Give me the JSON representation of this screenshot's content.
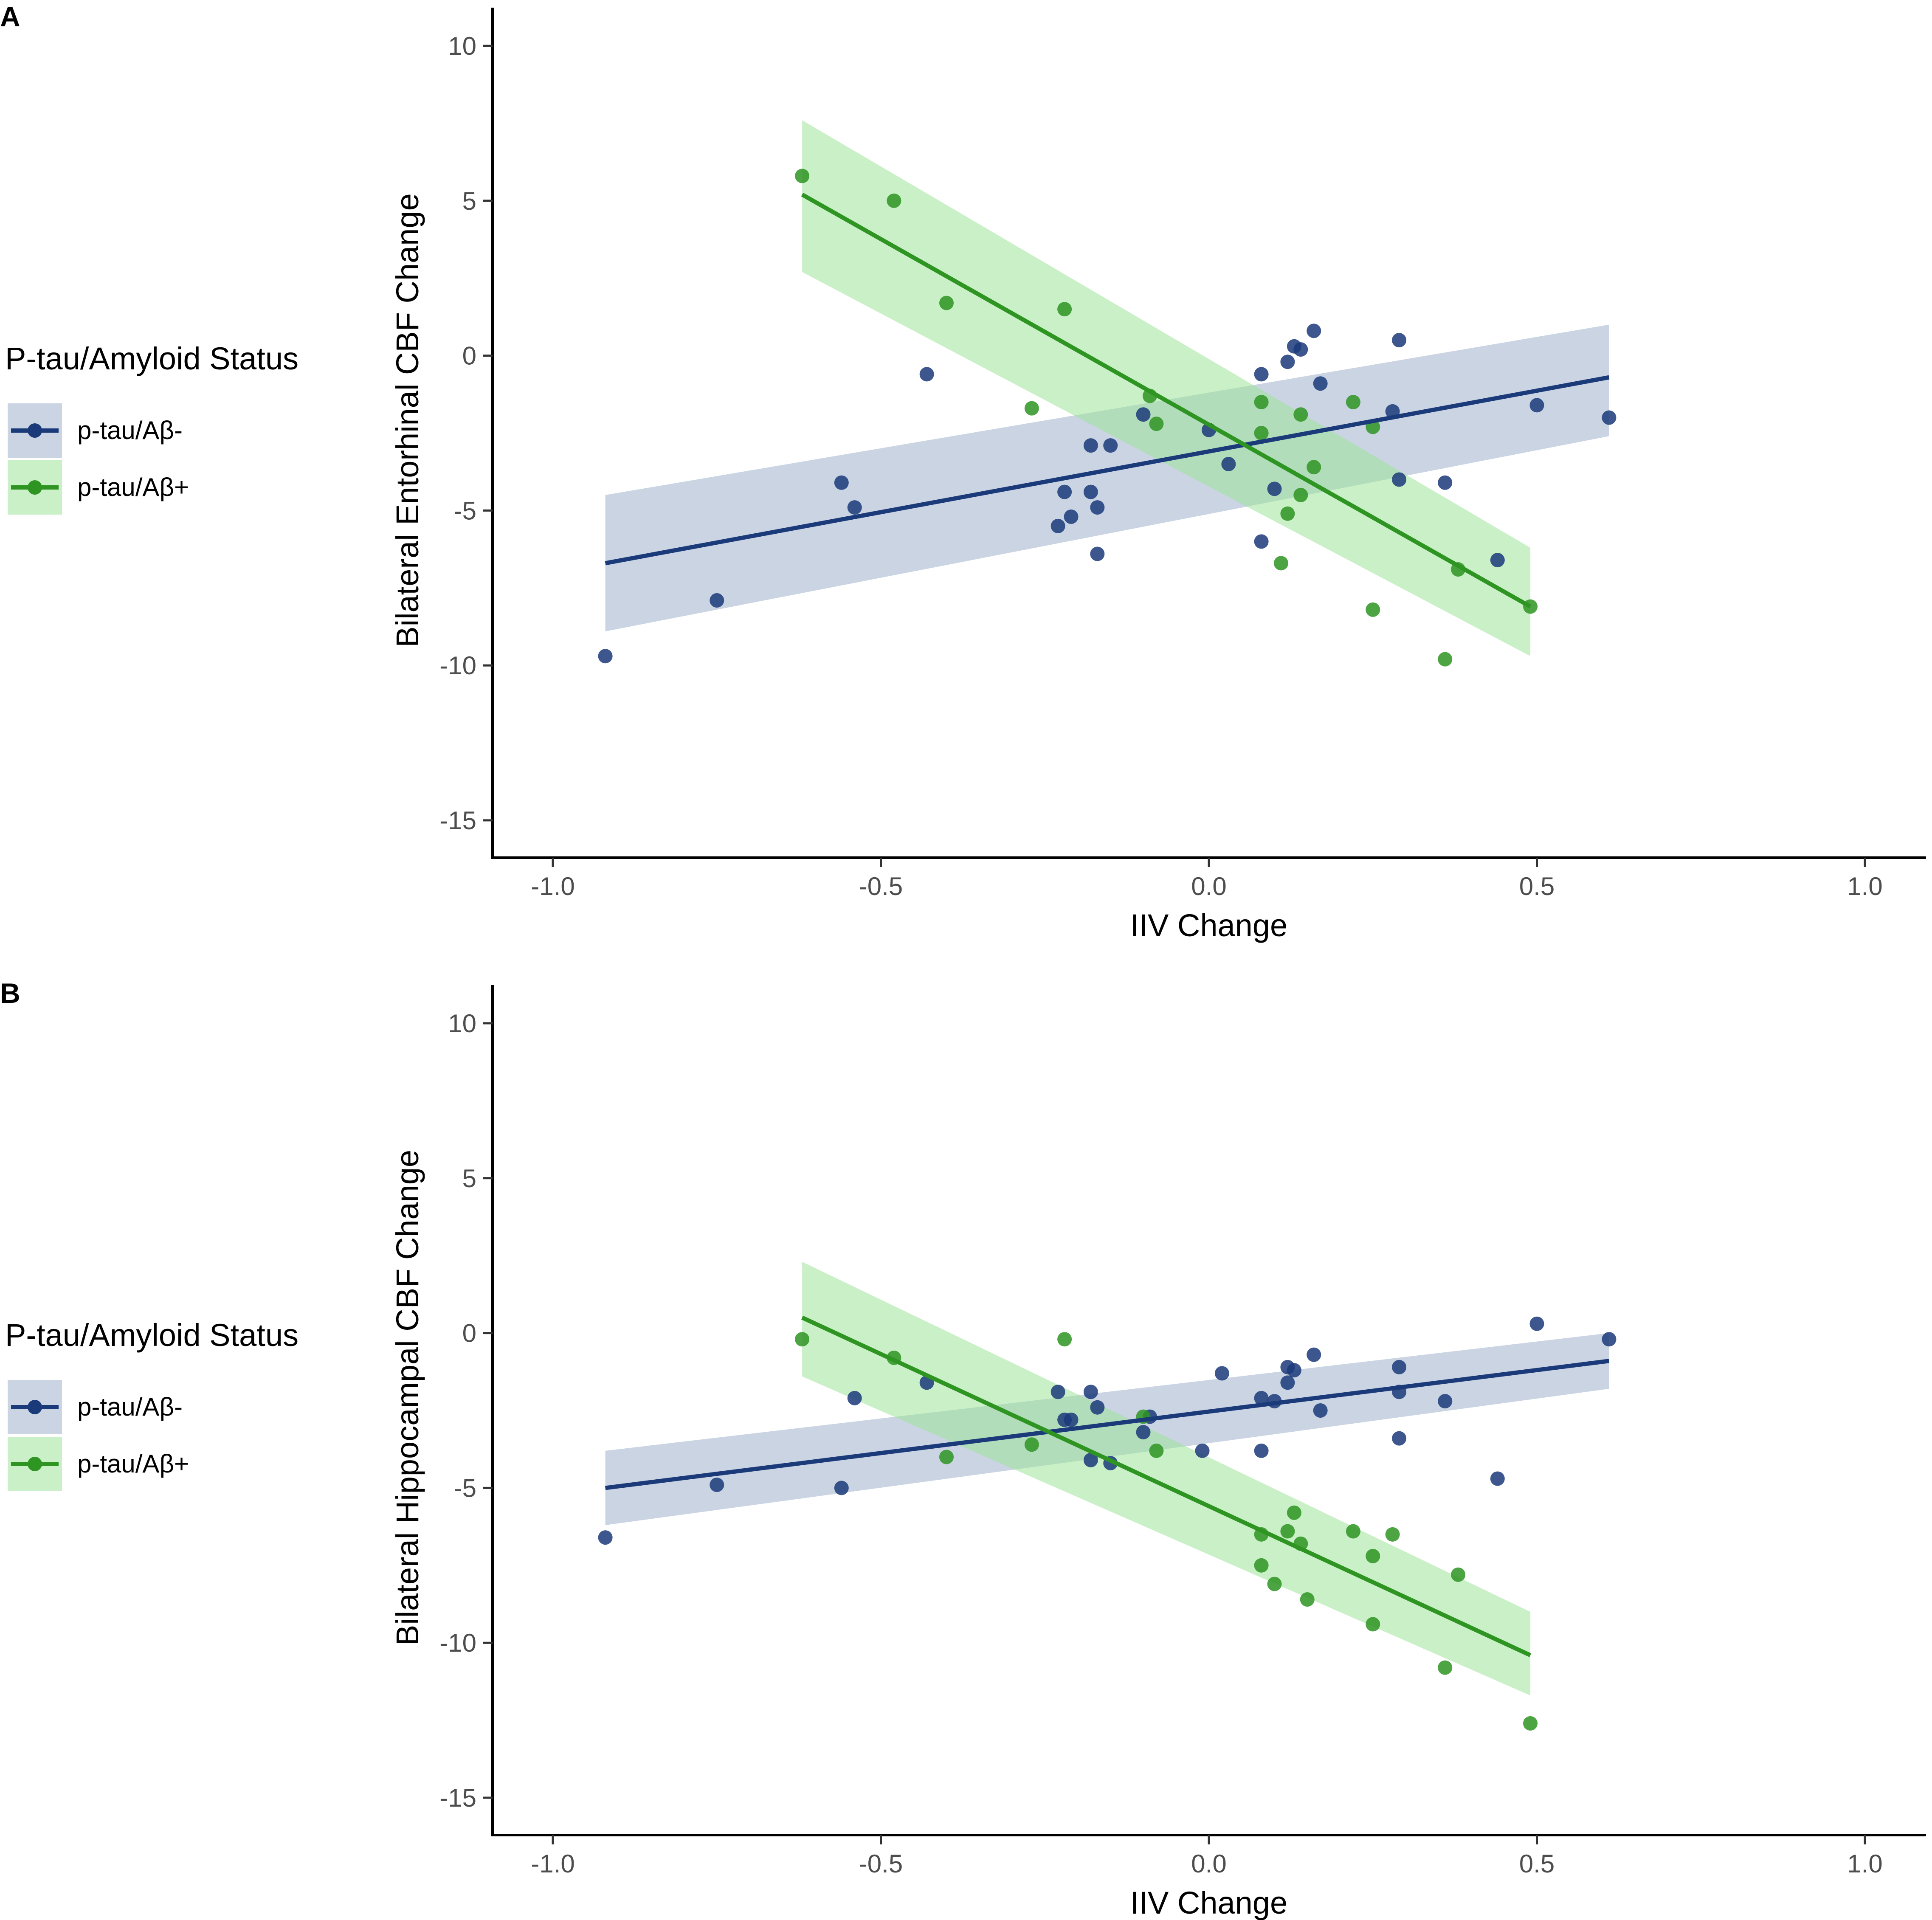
{
  "legend": {
    "title": "P-tau/Amyloid Status",
    "entries": [
      "p-tau/Aβ-",
      "p-tau/Aβ+"
    ]
  },
  "colors": {
    "series_neg": "#1b3a7a",
    "series_neg_band": "#9fb0cc",
    "series_pos": "#2e9422",
    "series_pos_band": "#9fe39a",
    "axis": "#000000"
  },
  "chart_data": [
    {
      "panel": "A",
      "type": "scatter",
      "xlabel": "IIV Change",
      "ylabel": "Bilateral Entorhinal CBF Change",
      "xlim": [
        -1.1,
        1.1
      ],
      "ylim": [
        -16.2,
        11.2
      ],
      "xticks": [
        -1.0,
        -0.5,
        0.0,
        0.5,
        1.0
      ],
      "xtick_labels": [
        "-1.0",
        "-0.5",
        "0.0",
        "0.5",
        "1.0"
      ],
      "yticks": [
        10,
        5,
        0,
        -5,
        -10,
        -15
      ],
      "ytick_labels": [
        "10",
        "5",
        "0",
        "-5",
        "-10",
        "-15"
      ],
      "series": [
        {
          "name": "p-tau/Aβ-",
          "fit": {
            "x": [
              -0.92,
              0.61
            ],
            "y": [
              -6.7,
              -0.7
            ]
          },
          "band": {
            "x": [
              -0.92,
              0.61
            ],
            "upper": [
              -4.5,
              1.0
            ],
            "lower": [
              -8.9,
              -2.6
            ]
          },
          "points": [
            [
              -0.92,
              -9.7
            ],
            [
              -0.75,
              -7.9
            ],
            [
              -0.56,
              -4.1
            ],
            [
              -0.54,
              -4.9
            ],
            [
              -0.43,
              -0.6
            ],
            [
              -0.23,
              -5.5
            ],
            [
              -0.22,
              -4.4
            ],
            [
              -0.21,
              -5.2
            ],
            [
              -0.18,
              -2.9
            ],
            [
              -0.18,
              -4.4
            ],
            [
              -0.17,
              -6.4
            ],
            [
              -0.17,
              -4.9
            ],
            [
              -0.15,
              -2.9
            ],
            [
              -0.1,
              -1.9
            ],
            [
              0.0,
              -2.4
            ],
            [
              0.03,
              -3.5
            ],
            [
              0.08,
              -0.6
            ],
            [
              0.08,
              -6.0
            ],
            [
              0.1,
              -4.3
            ],
            [
              0.12,
              -0.2
            ],
            [
              0.13,
              0.3
            ],
            [
              0.14,
              0.2
            ],
            [
              0.16,
              0.8
            ],
            [
              0.17,
              -0.9
            ],
            [
              0.28,
              -1.8
            ],
            [
              0.29,
              0.5
            ],
            [
              0.29,
              -4.0
            ],
            [
              0.36,
              -4.1
            ],
            [
              0.44,
              -6.6
            ],
            [
              0.5,
              -1.6
            ],
            [
              0.61,
              -2.0
            ]
          ]
        },
        {
          "name": "p-tau/Aβ+",
          "fit": {
            "x": [
              -0.62,
              0.49
            ],
            "y": [
              5.2,
              -8.1
            ]
          },
          "band": {
            "x": [
              -0.62,
              0.49
            ],
            "upper": [
              7.6,
              -6.2
            ],
            "lower": [
              2.7,
              -9.7
            ]
          },
          "points": [
            [
              -0.62,
              5.8
            ],
            [
              -0.48,
              5.0
            ],
            [
              -0.4,
              1.7
            ],
            [
              -0.27,
              -1.7
            ],
            [
              -0.22,
              1.5
            ],
            [
              -0.09,
              -1.3
            ],
            [
              -0.08,
              -2.2
            ],
            [
              0.08,
              -1.5
            ],
            [
              0.08,
              -2.5
            ],
            [
              0.11,
              -6.7
            ],
            [
              0.12,
              -5.1
            ],
            [
              0.14,
              -4.5
            ],
            [
              0.14,
              -1.9
            ],
            [
              0.16,
              -3.6
            ],
            [
              0.22,
              -1.5
            ],
            [
              0.25,
              -2.3
            ],
            [
              0.25,
              -8.2
            ],
            [
              0.36,
              -9.8
            ],
            [
              0.38,
              -6.9
            ],
            [
              0.49,
              -8.1
            ]
          ]
        }
      ]
    },
    {
      "panel": "B",
      "type": "scatter",
      "xlabel": "IIV Change",
      "ylabel": "Bilateral Hippocampal CBF Change",
      "xlim": [
        -1.1,
        1.1
      ],
      "ylim": [
        -16.2,
        11.2
      ],
      "xticks": [
        -1.0,
        -0.5,
        0.0,
        0.5,
        1.0
      ],
      "xtick_labels": [
        "-1.0",
        "-0.5",
        "0.0",
        "0.5",
        "1.0"
      ],
      "yticks": [
        10,
        5,
        0,
        -5,
        -10,
        -15
      ],
      "ytick_labels": [
        "10",
        "5",
        "0",
        "-5",
        "-10",
        "-15"
      ],
      "series": [
        {
          "name": "p-tau/Aβ-",
          "fit": {
            "x": [
              -0.92,
              0.61
            ],
            "y": [
              -5.0,
              -0.9
            ]
          },
          "band": {
            "x": [
              -0.92,
              0.61
            ],
            "upper": [
              -3.8,
              0.0
            ],
            "lower": [
              -6.2,
              -1.8
            ]
          },
          "points": [
            [
              -0.92,
              -6.6
            ],
            [
              -0.75,
              -4.9
            ],
            [
              -0.56,
              -5.0
            ],
            [
              -0.54,
              -2.1
            ],
            [
              -0.43,
              -1.6
            ],
            [
              -0.23,
              -1.9
            ],
            [
              -0.22,
              -2.8
            ],
            [
              -0.21,
              -2.8
            ],
            [
              -0.18,
              -1.9
            ],
            [
              -0.18,
              -4.1
            ],
            [
              -0.17,
              -2.4
            ],
            [
              -0.15,
              -4.2
            ],
            [
              -0.1,
              -3.2
            ],
            [
              -0.09,
              -2.7
            ],
            [
              -0.01,
              -3.8
            ],
            [
              0.02,
              -1.3
            ],
            [
              0.08,
              -3.8
            ],
            [
              0.08,
              -2.1
            ],
            [
              0.1,
              -2.2
            ],
            [
              0.12,
              -1.6
            ],
            [
              0.12,
              -1.1
            ],
            [
              0.13,
              -1.2
            ],
            [
              0.16,
              -0.7
            ],
            [
              0.17,
              -2.5
            ],
            [
              0.29,
              -1.1
            ],
            [
              0.29,
              -1.9
            ],
            [
              0.29,
              -3.4
            ],
            [
              0.36,
              -2.2
            ],
            [
              0.44,
              -4.7
            ],
            [
              0.5,
              0.3
            ],
            [
              0.61,
              -0.2
            ]
          ]
        },
        {
          "name": "p-tau/Aβ+",
          "fit": {
            "x": [
              -0.62,
              0.49
            ],
            "y": [
              0.5,
              -10.4
            ]
          },
          "band": {
            "x": [
              -0.62,
              0.49
            ],
            "upper": [
              2.3,
              -9.0
            ],
            "lower": [
              -1.4,
              -11.7
            ]
          },
          "points": [
            [
              -0.62,
              -0.2
            ],
            [
              -0.48,
              -0.8
            ],
            [
              -0.4,
              -4.0
            ],
            [
              -0.27,
              -3.6
            ],
            [
              -0.22,
              -0.2
            ],
            [
              -0.1,
              -2.7
            ],
            [
              -0.08,
              -3.8
            ],
            [
              0.08,
              -6.5
            ],
            [
              0.08,
              -7.5
            ],
            [
              0.1,
              -8.1
            ],
            [
              0.12,
              -6.4
            ],
            [
              0.13,
              -5.8
            ],
            [
              0.14,
              -6.8
            ],
            [
              0.15,
              -8.6
            ],
            [
              0.22,
              -6.4
            ],
            [
              0.25,
              -7.2
            ],
            [
              0.25,
              -9.4
            ],
            [
              0.28,
              -6.5
            ],
            [
              0.36,
              -10.8
            ],
            [
              0.38,
              -7.8
            ],
            [
              0.49,
              -12.6
            ]
          ]
        }
      ]
    }
  ]
}
